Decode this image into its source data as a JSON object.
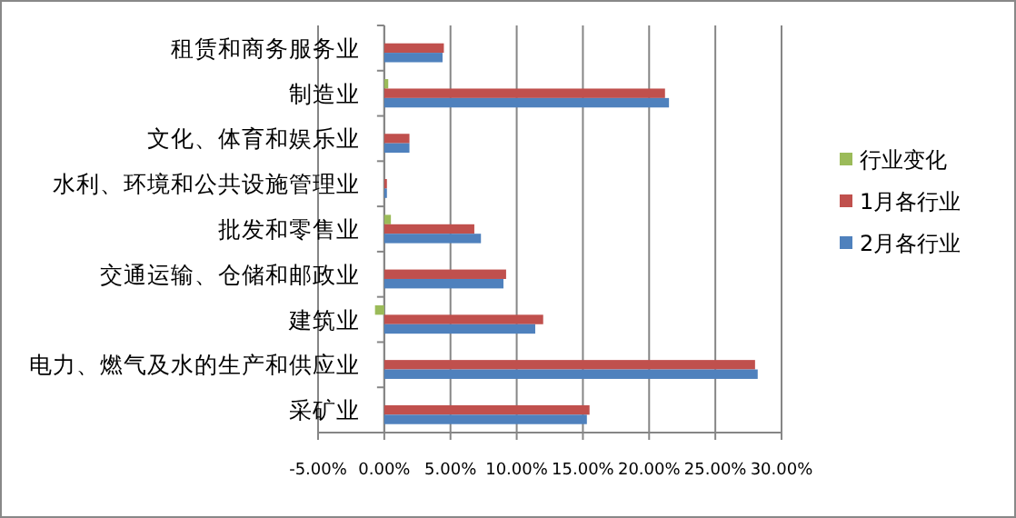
{
  "chart_data": {
    "type": "bar",
    "orientation": "horizontal",
    "categories": [
      "租赁和商务服务业",
      "制造业",
      "文化、体育和娱乐业",
      "水利、环境和公共设施管理业",
      "批发和零售业",
      "交通运输、仓储和邮政业",
      "建筑业",
      "电力、燃气及水的生产和供应业",
      "采矿业"
    ],
    "series": [
      {
        "name": "行业变化",
        "color": "#9bbb59",
        "values": [
          null,
          0.3,
          null,
          null,
          0.5,
          null,
          -0.7,
          null,
          null
        ]
      },
      {
        "name": "1月各行业",
        "color": "#c0504d",
        "values": [
          4.5,
          21.2,
          1.9,
          0.2,
          6.8,
          9.2,
          12.0,
          28.0,
          15.5
        ]
      },
      {
        "name": "2月各行业",
        "color": "#4f81bd",
        "values": [
          4.4,
          21.5,
          1.9,
          0.2,
          7.3,
          9.0,
          11.4,
          28.2,
          15.3
        ]
      }
    ],
    "xlim": [
      -5,
      30
    ],
    "xticks": [
      {
        "value": -5,
        "label": "-5.00%"
      },
      {
        "value": 0,
        "label": "0.00%"
      },
      {
        "value": 5,
        "label": "5.00%"
      },
      {
        "value": 10,
        "label": "10.00%"
      },
      {
        "value": 15,
        "label": "15.00%"
      },
      {
        "value": 20,
        "label": "20.00%"
      },
      {
        "value": 25,
        "label": "25.00%"
      },
      {
        "value": 30,
        "label": "30.00%"
      }
    ],
    "grid": "x",
    "legend": "right"
  }
}
